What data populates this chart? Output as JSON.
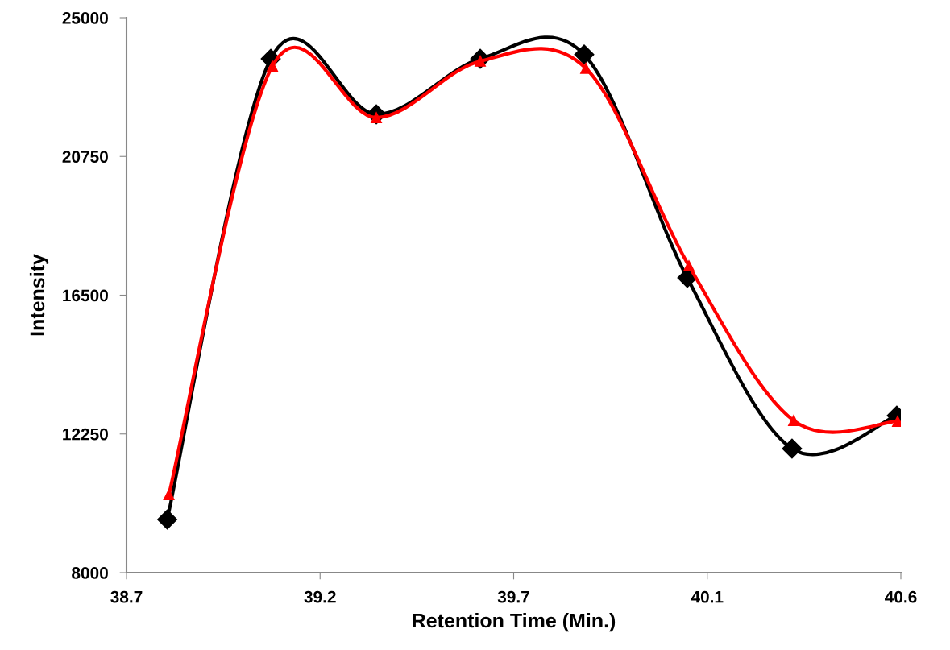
{
  "chart_data": {
    "type": "line",
    "xlabel": "Retention Time (Min.)",
    "ylabel": "Intensity",
    "x": [
      38.8,
      39.054,
      39.313,
      39.568,
      39.823,
      40.076,
      40.333,
      40.59
    ],
    "series": [
      {
        "color": "#000000",
        "marker": "diamond",
        "values": [
          9630,
          23740,
          22040,
          23740,
          23870,
          17030,
          11800,
          12810
        ]
      },
      {
        "color": "#ff0000",
        "marker": "triangle",
        "x": [
          38.804,
          39.058,
          39.313,
          39.568,
          39.827,
          40.08,
          40.337,
          40.592
        ],
        "values": [
          10390,
          23520,
          21940,
          23670,
          23450,
          17400,
          12660,
          12640
        ]
      }
    ],
    "xlim": [
      38.7,
      40.6
    ],
    "xticks": [
      38.7,
      {
        "value": 39.175,
        "label": "39.2"
      },
      {
        "value": 39.65,
        "label": "39.7"
      },
      {
        "value": 40.125,
        "label": "40.1"
      },
      40.6
    ],
    "ylim": [
      8000,
      25000
    ],
    "yticks": [
      8000,
      12250,
      16500,
      20750,
      25000
    ],
    "grid": false,
    "legend": false,
    "line_style": "solid"
  }
}
